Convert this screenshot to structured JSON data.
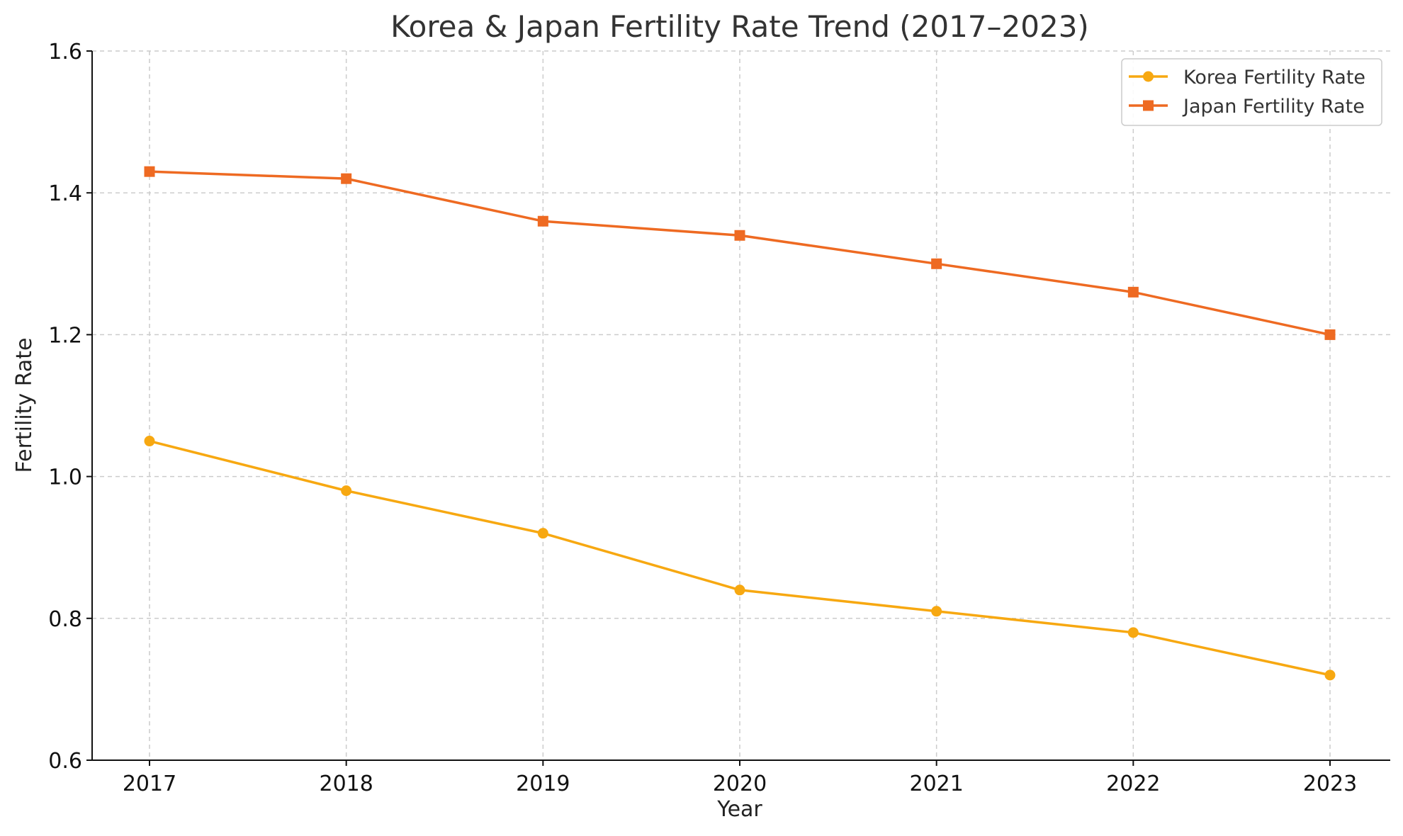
{
  "chart_data": {
    "type": "line",
    "title": "Korea & Japan Fertility Rate Trend (2017–2023)",
    "xlabel": "Year",
    "ylabel": "Fertility Rate",
    "categories": [
      "2017",
      "2018",
      "2019",
      "2020",
      "2021",
      "2022",
      "2023"
    ],
    "x": [
      2017,
      2018,
      2019,
      2020,
      2021,
      2022,
      2023
    ],
    "ylim": [
      0.6,
      1.6
    ],
    "yticks": [
      "0.6",
      "0.8",
      "1.0",
      "1.2",
      "1.4",
      "1.6"
    ],
    "grid": true,
    "legend_position": "top-right",
    "series": [
      {
        "name": "Korea Fertility Rate",
        "marker": "circle",
        "color": "#F7A811",
        "values": [
          1.05,
          0.98,
          0.92,
          0.84,
          0.81,
          0.78,
          0.72
        ]
      },
      {
        "name": "Japan Fertility Rate",
        "marker": "square",
        "color": "#EE6A22",
        "values": [
          1.43,
          1.42,
          1.36,
          1.34,
          1.3,
          1.26,
          1.2
        ]
      }
    ]
  }
}
